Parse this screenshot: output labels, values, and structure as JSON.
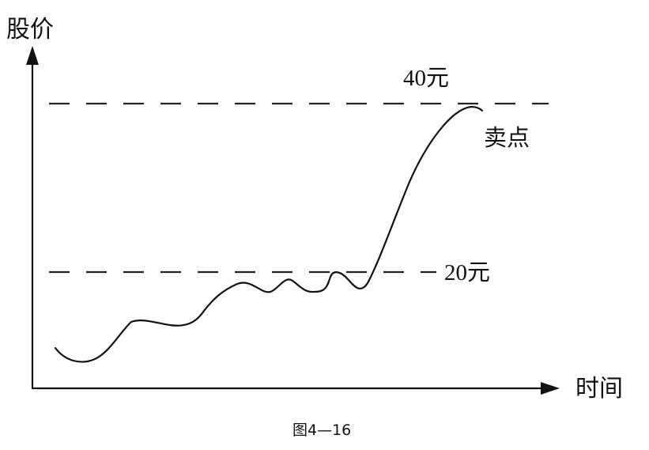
{
  "diagram": {
    "y_axis_label": "股价",
    "x_axis_label": "时间",
    "levels": [
      {
        "value_label": "40元"
      },
      {
        "value_label": "20元"
      }
    ],
    "annotation": "卖点",
    "caption": "图4—16",
    "line_color": "#111111",
    "dash_color": "#222222"
  }
}
